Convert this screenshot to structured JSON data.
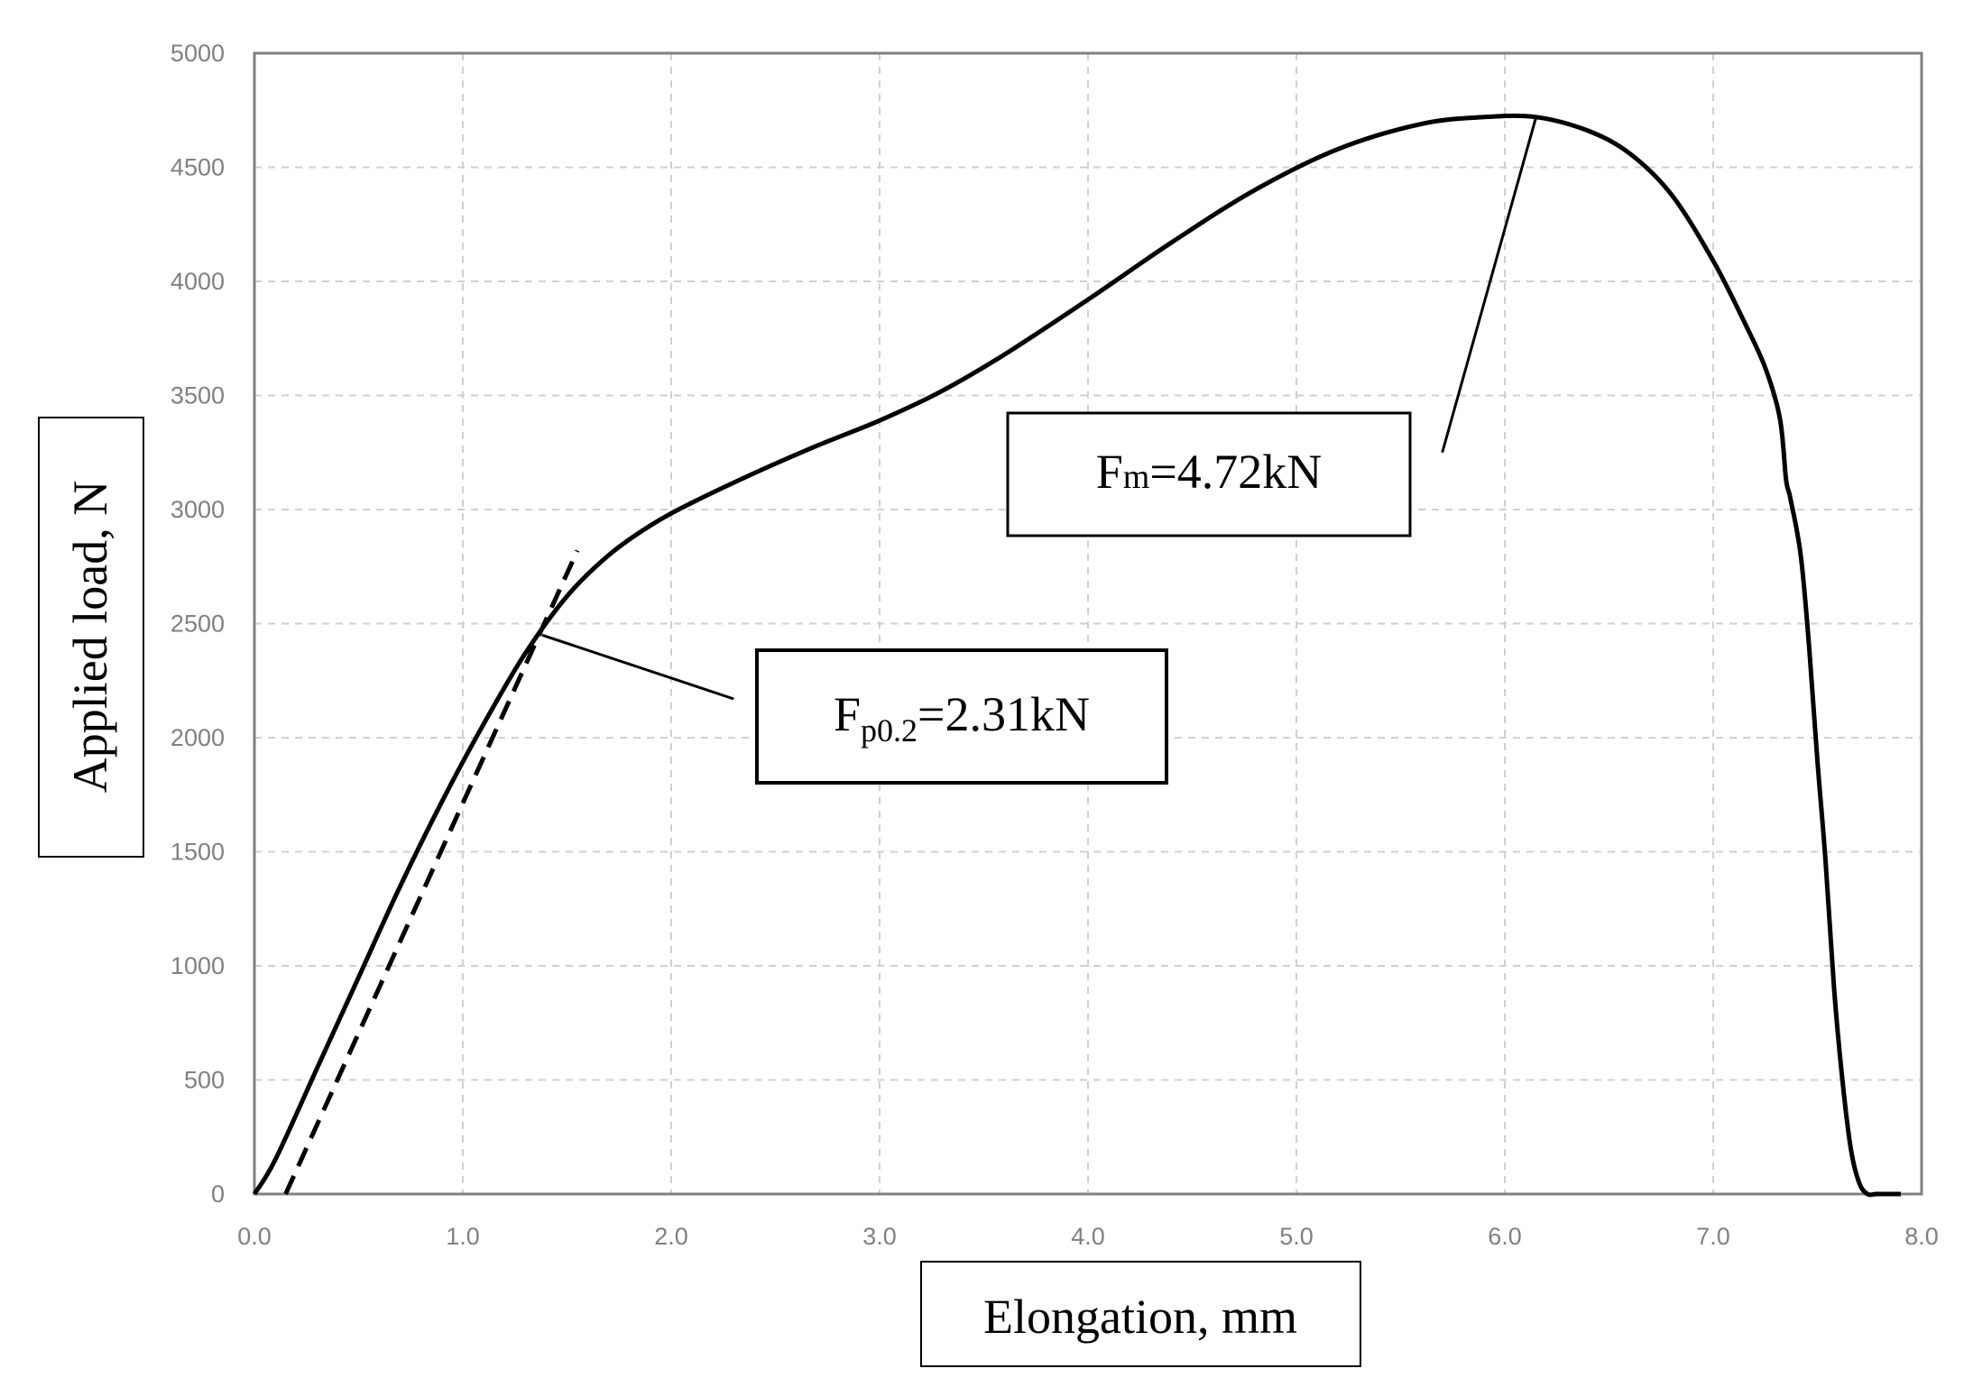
{
  "chart_data": {
    "type": "line",
    "title": "",
    "xlabel": "Elongation, mm",
    "ylabel": "Applied load, N",
    "xlim": [
      0,
      8
    ],
    "ylim": [
      0,
      5000
    ],
    "x_ticks": [
      "0.0",
      "1.0",
      "2.0",
      "3.0",
      "4.0",
      "5.0",
      "6.0",
      "7.0",
      "8.0"
    ],
    "y_ticks": [
      "0",
      "500",
      "1000",
      "1500",
      "2000",
      "2500",
      "3000",
      "3500",
      "4000",
      "4500",
      "5000"
    ],
    "grid": true,
    "series": [
      {
        "style": "solid",
        "x": [
          0.0,
          0.1,
          0.3,
          0.5,
          0.7,
          0.9,
          1.1,
          1.3,
          1.5,
          1.7,
          1.9,
          2.1,
          2.4,
          2.7,
          3.0,
          3.3,
          3.6,
          4.0,
          4.4,
          4.8,
          5.2,
          5.6,
          5.9,
          6.15,
          6.4,
          6.6,
          6.8,
          7.0,
          7.15,
          7.25,
          7.32,
          7.35,
          7.37,
          7.42,
          7.46,
          7.5,
          7.54,
          7.58,
          7.62,
          7.66,
          7.7,
          7.74,
          7.78,
          7.82,
          7.9
        ],
        "y": [
          0,
          150,
          550,
          950,
          1350,
          1720,
          2060,
          2370,
          2620,
          2800,
          2930,
          3030,
          3160,
          3280,
          3390,
          3520,
          3680,
          3920,
          4170,
          4400,
          4580,
          4690,
          4720,
          4720,
          4660,
          4560,
          4380,
          4090,
          3820,
          3620,
          3400,
          3130,
          3050,
          2800,
          2400,
          1900,
          1450,
          900,
          500,
          200,
          50,
          0,
          0,
          0,
          0
        ]
      },
      {
        "style": "dashed",
        "x": [
          0.15,
          1.55
        ],
        "y": [
          0,
          2820
        ]
      }
    ],
    "annotations": [
      {
        "id": "fm",
        "main": "F",
        "sub": "m",
        "rest": "=4.72kN",
        "point": {
          "x": 6.15,
          "y": 4720
        },
        "line_end": {
          "x": 5.7,
          "y": 3250
        }
      },
      {
        "id": "fp",
        "main": "F",
        "sub": "p0.2",
        "rest": "=2.31kN",
        "point": {
          "x": 1.38,
          "y": 2450
        },
        "line_end": {
          "x": 2.3,
          "y": 2170
        }
      }
    ]
  }
}
